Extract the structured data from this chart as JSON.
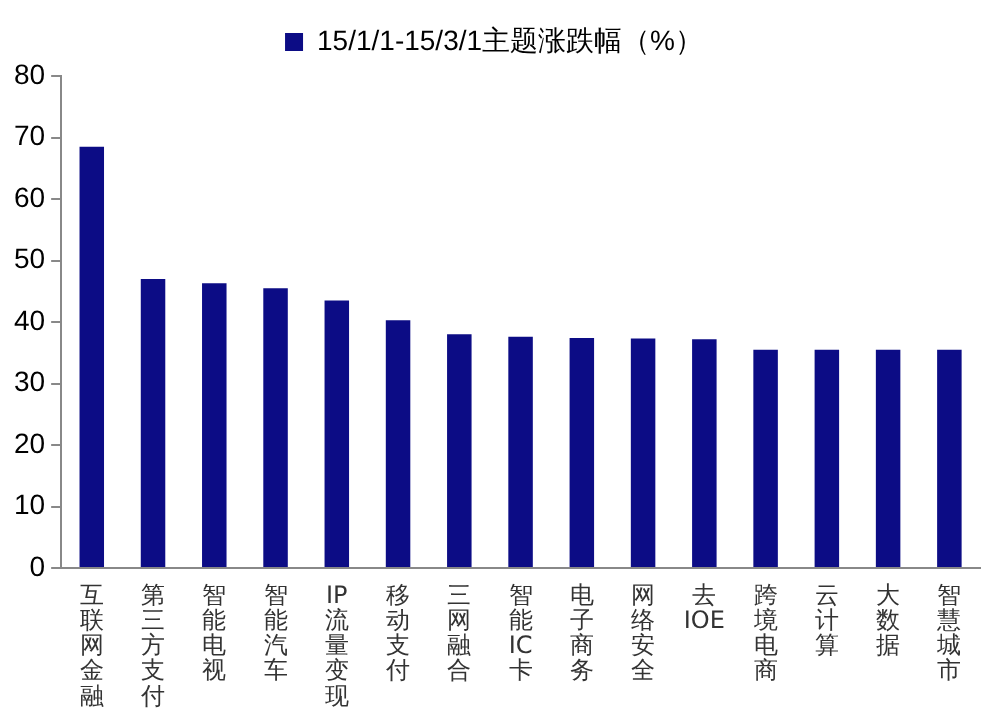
{
  "chart_data": {
    "type": "bar",
    "categories": [
      "互联网金融",
      "第三方支付",
      "智能电视",
      "智能汽车",
      "IP流量变现",
      "移动支付",
      "三网融合",
      "智能IC卡",
      "电子商务",
      "网络安全",
      "去IOE",
      "跨境电商",
      "云计算",
      "大数据",
      "智慧城市"
    ],
    "series": [
      {
        "name": "15/1/1-15/3/1主题涨跌幅（%）",
        "color": "#0c0c85",
        "values": [
          68.5,
          47,
          46.3,
          45.5,
          43.5,
          40.3,
          38,
          37.6,
          37.4,
          37.3,
          37.2,
          35.5,
          35.5,
          35.5,
          35.5
        ]
      }
    ],
    "ylim": [
      0,
      80
    ],
    "yticks": [
      0,
      10,
      20,
      30,
      40,
      50,
      60,
      70,
      80
    ],
    "grid": false,
    "legend": "top"
  }
}
